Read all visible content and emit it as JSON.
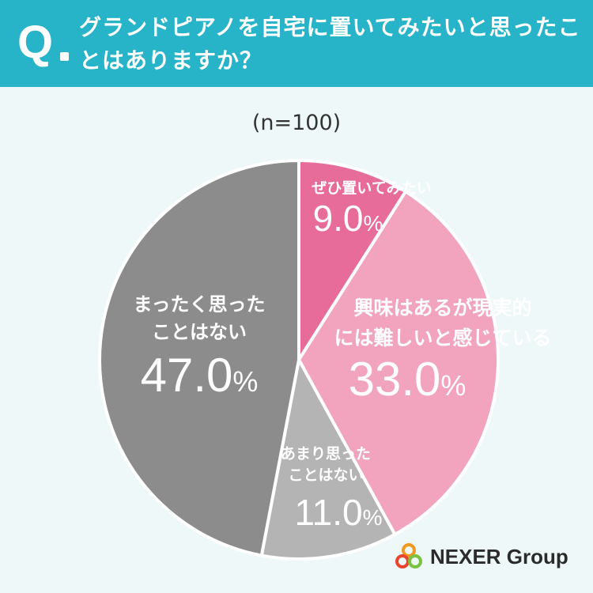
{
  "header": {
    "q_label": "Q",
    "question": "グランドピアノを自宅に置いてみたいと思ったことはありますか？"
  },
  "sample_note": "(n=100)",
  "brand": {
    "name": "NEXER Group"
  },
  "colors": {
    "header_bg": "#27b3c8",
    "slice_1": "#e86c9a",
    "slice_2": "#f2a3bd",
    "slice_3": "#b4b4b4",
    "slice_4": "#8c8c8c"
  },
  "chart_data": {
    "type": "pie",
    "start": "top, clockwise",
    "slices": [
      {
        "label_lines": [
          "ぜひ置いてみたい"
        ],
        "value": 9.0,
        "display": "9.0%",
        "color": "#e86c9a"
      },
      {
        "label_lines": [
          "興味はあるが現実的",
          "には難しいと感じている"
        ],
        "value": 33.0,
        "display": "33.0%",
        "color": "#f2a3bd"
      },
      {
        "label_lines": [
          "あまり思った",
          "ことはない"
        ],
        "value": 11.0,
        "display": "11.0%",
        "color": "#b4b4b4"
      },
      {
        "label_lines": [
          "まったく思った",
          "ことはない"
        ],
        "value": 47.0,
        "display": "47.0%",
        "color": "#8c8c8c"
      }
    ]
  }
}
